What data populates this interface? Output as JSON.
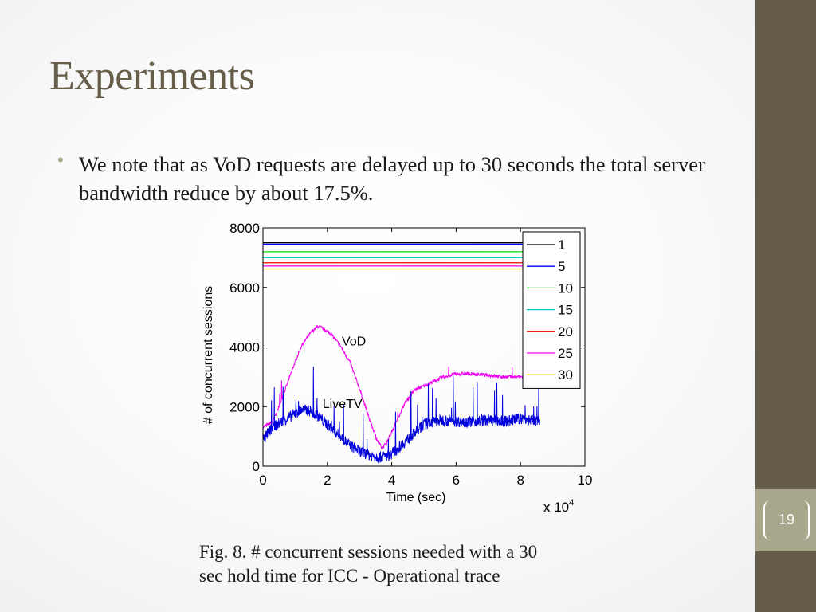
{
  "slide": {
    "title": "Experiments",
    "bullet": "We note that as VoD requests are delayed up to 30 seconds the total server bandwidth reduce by about 17.5%.",
    "caption_line1": "Fig. 8.   # concurrent sessions needed with a 30",
    "caption_line2": "sec hold time for ICC - Operational trace",
    "page_number": "19",
    "colors": {
      "sidebar": "#645b48",
      "accent": "#a8a78b",
      "title": "#675e4a"
    }
  },
  "chart_data": {
    "type": "line",
    "xlabel": "Time (sec)",
    "ylabel": "# of concurrent sessions",
    "x_multiplier_base": "x 10",
    "x_multiplier_exp": "4",
    "xlim": [
      0,
      10
    ],
    "ylim": [
      0,
      8000
    ],
    "xticks": [
      "0",
      "2",
      "4",
      "6",
      "8",
      "10"
    ],
    "yticks": [
      "0",
      "2000",
      "4000",
      "6000",
      "8000"
    ],
    "legend_position": "top-right",
    "annotations": [
      {
        "text": "VoD",
        "x": 2.45,
        "y": 4050
      },
      {
        "text": "LiveTV",
        "x": 1.85,
        "y": 1950
      }
    ],
    "series": [
      {
        "name": "1",
        "color": "#000000",
        "values": [
          [
            0,
            7500
          ],
          [
            8.1,
            7500
          ]
        ]
      },
      {
        "name": "5",
        "color": "#0000ff",
        "values": [
          [
            0,
            7450
          ],
          [
            8.1,
            7450
          ]
        ]
      },
      {
        "name": "10",
        "color": "#00dd00",
        "values": [
          [
            0,
            7200
          ],
          [
            8.1,
            7200
          ]
        ]
      },
      {
        "name": "15",
        "color": "#00cccc",
        "values": [
          [
            0,
            7000
          ],
          [
            8.1,
            7000
          ]
        ]
      },
      {
        "name": "20",
        "color": "#ee0000",
        "values": [
          [
            0,
            6830
          ],
          [
            8.1,
            6830
          ]
        ]
      },
      {
        "name": "25",
        "color": "#ee00ee",
        "values": [
          [
            0,
            6720
          ],
          [
            8.1,
            6720
          ]
        ]
      },
      {
        "name": "30",
        "color": "#eeee00",
        "values": [
          [
            0,
            6620
          ],
          [
            8.1,
            6620
          ]
        ]
      }
    ],
    "vod_curve": {
      "color": "#ee00ee",
      "values": [
        [
          0,
          1300
        ],
        [
          0.3,
          1500
        ],
        [
          0.5,
          2000
        ],
        [
          0.8,
          2900
        ],
        [
          1.0,
          3500
        ],
        [
          1.2,
          4050
        ],
        [
          1.5,
          4500
        ],
        [
          1.7,
          4700
        ],
        [
          1.9,
          4600
        ],
        [
          2.1,
          4450
        ],
        [
          2.4,
          4050
        ],
        [
          2.7,
          3500
        ],
        [
          3.0,
          2600
        ],
        [
          3.3,
          1600
        ],
        [
          3.55,
          850
        ],
        [
          3.7,
          600
        ],
        [
          3.85,
          800
        ],
        [
          4.1,
          1400
        ],
        [
          4.4,
          2100
        ],
        [
          4.7,
          2550
        ],
        [
          5.0,
          2700
        ],
        [
          5.3,
          2850
        ],
        [
          5.6,
          3000
        ],
        [
          6.0,
          3100
        ],
        [
          6.5,
          3100
        ],
        [
          7.0,
          3050
        ],
        [
          7.5,
          3000
        ],
        [
          8.0,
          3000
        ],
        [
          8.1,
          3000
        ]
      ]
    },
    "livetv_curve": {
      "color": "#0000dd",
      "values": [
        [
          0,
          900
        ],
        [
          0.3,
          1300
        ],
        [
          0.6,
          1500
        ],
        [
          0.9,
          1700
        ],
        [
          1.2,
          1900
        ],
        [
          1.5,
          1850
        ],
        [
          1.8,
          1600
        ],
        [
          2.1,
          1300
        ],
        [
          2.4,
          1000
        ],
        [
          2.7,
          700
        ],
        [
          3.0,
          500
        ],
        [
          3.3,
          380
        ],
        [
          3.6,
          300
        ],
        [
          3.9,
          350
        ],
        [
          4.1,
          500
        ],
        [
          4.4,
          800
        ],
        [
          4.7,
          1100
        ],
        [
          5.0,
          1400
        ],
        [
          5.3,
          1500
        ],
        [
          5.6,
          1550
        ],
        [
          6.0,
          1500
        ],
        [
          6.5,
          1500
        ],
        [
          7.0,
          1550
        ],
        [
          7.5,
          1500
        ],
        [
          8.0,
          1600
        ],
        [
          8.6,
          1500
        ]
      ]
    }
  }
}
